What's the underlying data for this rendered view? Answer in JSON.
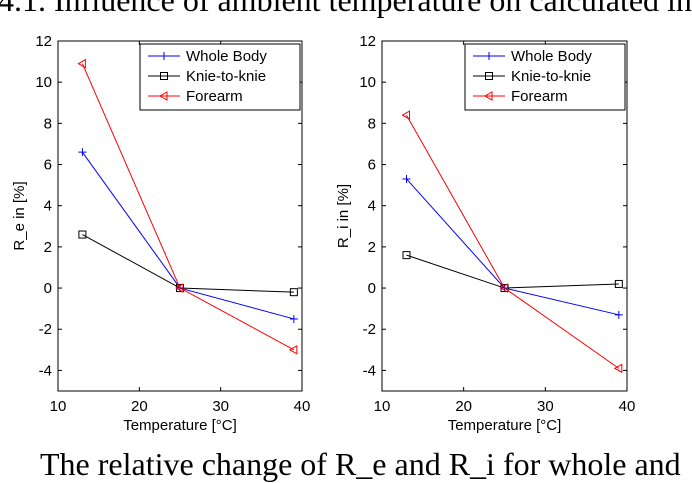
{
  "heading": "4.1.  Influence of ambient temperature on calculated in",
  "caption": "The relative change of R_e and R_i for whole and",
  "chart_data": [
    {
      "type": "line",
      "ylabel": "R_e in [%]",
      "ylabel_main": "R",
      "ylabel_sub": "e",
      "ylabel_tail": " in [%]",
      "xlabel": "Temperature [°C]",
      "xlim": [
        10,
        40
      ],
      "ylim": [
        -5,
        12
      ],
      "xticks": [
        10,
        20,
        30,
        40
      ],
      "yticks": [
        -4,
        -2,
        0,
        2,
        4,
        6,
        8,
        10,
        12
      ],
      "legend_position": "top-right",
      "x": [
        13,
        25,
        39
      ],
      "series": [
        {
          "name": "Whole Body",
          "color": "#0000ff",
          "marker": "plus",
          "values": [
            6.6,
            0,
            -1.5
          ]
        },
        {
          "name": "Knie-to-knie",
          "color": "#000000",
          "marker": "square",
          "values": [
            2.6,
            0,
            -0.2
          ]
        },
        {
          "name": "Forearm",
          "color": "#ff0000",
          "marker": "triangle-left",
          "values": [
            10.9,
            0,
            -3.0
          ]
        }
      ]
    },
    {
      "type": "line",
      "ylabel": "R_i in [%]",
      "ylabel_main": "R",
      "ylabel_sub": "i",
      "ylabel_tail": " in [%]",
      "xlabel": "Temperature [°C]",
      "xlim": [
        10,
        40
      ],
      "ylim": [
        -5,
        12
      ],
      "xticks": [
        10,
        20,
        30,
        40
      ],
      "yticks": [
        -4,
        -2,
        0,
        2,
        4,
        6,
        8,
        10,
        12
      ],
      "legend_position": "top-right",
      "x": [
        13,
        25,
        39
      ],
      "series": [
        {
          "name": "Whole Body",
          "color": "#0000ff",
          "marker": "plus",
          "values": [
            5.3,
            0,
            -1.3
          ]
        },
        {
          "name": "Knie-to-knie",
          "color": "#000000",
          "marker": "square",
          "values": [
            1.6,
            0,
            0.2
          ]
        },
        {
          "name": "Forearm",
          "color": "#ff0000",
          "marker": "triangle-left",
          "values": [
            8.4,
            0,
            -3.9
          ]
        }
      ]
    }
  ]
}
